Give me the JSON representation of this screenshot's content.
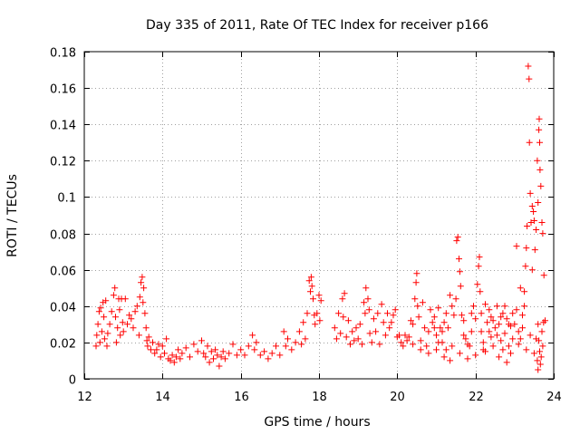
{
  "chart_data": {
    "type": "scatter",
    "title": "Day 335 of 2011, Rate Of TEC Index for receiver p166",
    "xlabel": "GPS time / hours",
    "ylabel": "ROTI / TECUs",
    "xlim": [
      12,
      24
    ],
    "ylim": [
      0,
      0.18
    ],
    "xticks": [
      12,
      14,
      16,
      18,
      20,
      22,
      24
    ],
    "yticks": [
      0,
      0.02,
      0.04,
      0.06,
      0.08,
      0.1,
      0.12,
      0.14,
      0.16,
      0.18
    ],
    "xtick_labels": [
      "12",
      "14",
      "16",
      "18",
      "20",
      "22",
      "24"
    ],
    "ytick_labels": [
      "0",
      "0.02",
      "0.04",
      "0.06",
      "0.08",
      "0.1",
      "0.12",
      "0.14",
      "0.16",
      "0.18"
    ],
    "grid": true,
    "marker": "plus",
    "color": "#ff0000",
    "series": [
      {
        "name": "ROTI",
        "points": [
          [
            12.3,
            0.018
          ],
          [
            12.32,
            0.024
          ],
          [
            12.35,
            0.03
          ],
          [
            12.38,
            0.037
          ],
          [
            12.4,
            0.02
          ],
          [
            12.42,
            0.039
          ],
          [
            12.45,
            0.026
          ],
          [
            12.48,
            0.042
          ],
          [
            12.5,
            0.034
          ],
          [
            12.52,
            0.022
          ],
          [
            12.55,
            0.043
          ],
          [
            12.58,
            0.018
          ],
          [
            12.6,
            0.025
          ],
          [
            12.65,
            0.03
          ],
          [
            12.7,
            0.037
          ],
          [
            12.75,
            0.046
          ],
          [
            12.78,
            0.05
          ],
          [
            12.8,
            0.034
          ],
          [
            12.82,
            0.02
          ],
          [
            12.85,
            0.028
          ],
          [
            12.88,
            0.044
          ],
          [
            12.9,
            0.038
          ],
          [
            12.92,
            0.024
          ],
          [
            12.95,
            0.044
          ],
          [
            12.98,
            0.031
          ],
          [
            13.0,
            0.026
          ],
          [
            13.05,
            0.044
          ],
          [
            13.1,
            0.03
          ],
          [
            13.15,
            0.035
          ],
          [
            13.2,
            0.033
          ],
          [
            13.25,
            0.028
          ],
          [
            13.3,
            0.037
          ],
          [
            13.35,
            0.04
          ],
          [
            13.4,
            0.024
          ],
          [
            13.42,
            0.045
          ],
          [
            13.45,
            0.053
          ],
          [
            13.48,
            0.056
          ],
          [
            13.5,
            0.042
          ],
          [
            13.52,
            0.05
          ],
          [
            13.55,
            0.036
          ],
          [
            13.58,
            0.028
          ],
          [
            13.6,
            0.021
          ],
          [
            13.62,
            0.018
          ],
          [
            13.65,
            0.023
          ],
          [
            13.7,
            0.016
          ],
          [
            13.75,
            0.02
          ],
          [
            13.8,
            0.014
          ],
          [
            13.85,
            0.016
          ],
          [
            13.9,
            0.019
          ],
          [
            13.95,
            0.012
          ],
          [
            14.0,
            0.018
          ],
          [
            14.05,
            0.014
          ],
          [
            14.1,
            0.022
          ],
          [
            14.15,
            0.011
          ],
          [
            14.2,
            0.01
          ],
          [
            14.25,
            0.013
          ],
          [
            14.3,
            0.009
          ],
          [
            14.35,
            0.012
          ],
          [
            14.4,
            0.016
          ],
          [
            14.45,
            0.011
          ],
          [
            14.5,
            0.014
          ],
          [
            14.6,
            0.017
          ],
          [
            14.7,
            0.012
          ],
          [
            14.8,
            0.019
          ],
          [
            14.9,
            0.015
          ],
          [
            15.0,
            0.021
          ],
          [
            15.05,
            0.014
          ],
          [
            15.1,
            0.012
          ],
          [
            15.15,
            0.018
          ],
          [
            15.2,
            0.009
          ],
          [
            15.25,
            0.015
          ],
          [
            15.3,
            0.011
          ],
          [
            15.35,
            0.016
          ],
          [
            15.4,
            0.013
          ],
          [
            15.45,
            0.007
          ],
          [
            15.5,
            0.012
          ],
          [
            15.55,
            0.015
          ],
          [
            15.6,
            0.011
          ],
          [
            15.7,
            0.014
          ],
          [
            15.8,
            0.019
          ],
          [
            15.9,
            0.013
          ],
          [
            16.0,
            0.016
          ],
          [
            16.1,
            0.013
          ],
          [
            16.2,
            0.018
          ],
          [
            16.3,
            0.024
          ],
          [
            16.35,
            0.016
          ],
          [
            16.4,
            0.02
          ],
          [
            16.5,
            0.013
          ],
          [
            16.6,
            0.015
          ],
          [
            16.7,
            0.011
          ],
          [
            16.8,
            0.014
          ],
          [
            16.9,
            0.018
          ],
          [
            17.0,
            0.013
          ],
          [
            17.1,
            0.026
          ],
          [
            17.15,
            0.018
          ],
          [
            17.2,
            0.022
          ],
          [
            17.3,
            0.016
          ],
          [
            17.4,
            0.02
          ],
          [
            17.5,
            0.026
          ],
          [
            17.55,
            0.019
          ],
          [
            17.6,
            0.031
          ],
          [
            17.65,
            0.022
          ],
          [
            17.7,
            0.036
          ],
          [
            17.75,
            0.054
          ],
          [
            17.78,
            0.048
          ],
          [
            17.8,
            0.056
          ],
          [
            17.82,
            0.051
          ],
          [
            17.85,
            0.044
          ],
          [
            17.88,
            0.035
          ],
          [
            17.9,
            0.03
          ],
          [
            17.95,
            0.036
          ],
          [
            18.0,
            0.046
          ],
          [
            18.02,
            0.032
          ],
          [
            18.05,
            0.043
          ],
          [
            18.4,
            0.028
          ],
          [
            18.45,
            0.022
          ],
          [
            18.5,
            0.036
          ],
          [
            18.55,
            0.025
          ],
          [
            18.6,
            0.044
          ],
          [
            18.62,
            0.034
          ],
          [
            18.65,
            0.047
          ],
          [
            18.7,
            0.023
          ],
          [
            18.75,
            0.032
          ],
          [
            18.8,
            0.019
          ],
          [
            18.85,
            0.026
          ],
          [
            18.9,
            0.021
          ],
          [
            18.95,
            0.028
          ],
          [
            19.0,
            0.022
          ],
          [
            19.05,
            0.03
          ],
          [
            19.1,
            0.019
          ],
          [
            19.15,
            0.042
          ],
          [
            19.18,
            0.036
          ],
          [
            19.2,
            0.05
          ],
          [
            19.25,
            0.044
          ],
          [
            19.28,
            0.038
          ],
          [
            19.3,
            0.025
          ],
          [
            19.35,
            0.02
          ],
          [
            19.4,
            0.033
          ],
          [
            19.45,
            0.026
          ],
          [
            19.5,
            0.036
          ],
          [
            19.55,
            0.019
          ],
          [
            19.6,
            0.041
          ],
          [
            19.65,
            0.031
          ],
          [
            19.7,
            0.024
          ],
          [
            19.75,
            0.036
          ],
          [
            19.8,
            0.028
          ],
          [
            19.85,
            0.031
          ],
          [
            19.9,
            0.035
          ],
          [
            19.95,
            0.038
          ],
          [
            20.0,
            0.023
          ],
          [
            20.05,
            0.024
          ],
          [
            20.1,
            0.02
          ],
          [
            20.15,
            0.018
          ],
          [
            20.2,
            0.024
          ],
          [
            20.25,
            0.021
          ],
          [
            20.3,
            0.023
          ],
          [
            20.35,
            0.032
          ],
          [
            20.4,
            0.03
          ],
          [
            20.45,
            0.044
          ],
          [
            20.48,
            0.053
          ],
          [
            20.5,
            0.058
          ],
          [
            20.52,
            0.04
          ],
          [
            20.55,
            0.034
          ],
          [
            20.6,
            0.021
          ],
          [
            20.65,
            0.042
          ],
          [
            20.7,
            0.028
          ],
          [
            20.75,
            0.018
          ],
          [
            20.8,
            0.026
          ],
          [
            20.85,
            0.038
          ],
          [
            20.9,
            0.031
          ],
          [
            20.95,
            0.034
          ],
          [
            21.0,
            0.024
          ],
          [
            21.05,
            0.039
          ],
          [
            21.1,
            0.028
          ],
          [
            21.15,
            0.02
          ],
          [
            21.2,
            0.031
          ],
          [
            21.25,
            0.016
          ],
          [
            21.3,
            0.028
          ],
          [
            21.35,
            0.01
          ],
          [
            21.4,
            0.04
          ],
          [
            21.45,
            0.035
          ],
          [
            21.5,
            0.044
          ],
          [
            21.52,
            0.076
          ],
          [
            21.55,
            0.078
          ],
          [
            21.58,
            0.066
          ],
          [
            21.6,
            0.059
          ],
          [
            21.62,
            0.051
          ],
          [
            21.65,
            0.035
          ],
          [
            21.7,
            0.024
          ],
          [
            21.75,
            0.022
          ],
          [
            21.8,
            0.019
          ],
          [
            21.85,
            0.018
          ],
          [
            21.9,
            0.026
          ],
          [
            21.95,
            0.04
          ],
          [
            22.0,
            0.033
          ],
          [
            22.05,
            0.052
          ],
          [
            22.08,
            0.062
          ],
          [
            22.1,
            0.067
          ],
          [
            22.12,
            0.048
          ],
          [
            22.15,
            0.036
          ],
          [
            22.2,
            0.02
          ],
          [
            22.25,
            0.015
          ],
          [
            22.3,
            0.031
          ],
          [
            22.35,
            0.026
          ],
          [
            22.4,
            0.034
          ],
          [
            22.45,
            0.018
          ],
          [
            22.5,
            0.028
          ],
          [
            22.55,
            0.024
          ],
          [
            22.6,
            0.03
          ],
          [
            22.65,
            0.021
          ],
          [
            22.7,
            0.036
          ],
          [
            22.75,
            0.025
          ],
          [
            22.8,
            0.033
          ],
          [
            22.85,
            0.018
          ],
          [
            22.9,
            0.029
          ],
          [
            22.95,
            0.022
          ],
          [
            23.0,
            0.03
          ],
          [
            23.05,
            0.073
          ],
          [
            23.1,
            0.026
          ],
          [
            23.15,
            0.022
          ],
          [
            23.2,
            0.035
          ],
          [
            23.25,
            0.048
          ],
          [
            23.28,
            0.062
          ],
          [
            23.3,
            0.072
          ],
          [
            23.32,
            0.084
          ],
          [
            23.35,
            0.172
          ],
          [
            23.37,
            0.165
          ],
          [
            23.38,
            0.13
          ],
          [
            23.4,
            0.102
          ],
          [
            23.42,
            0.086
          ],
          [
            23.45,
            0.095
          ],
          [
            23.48,
            0.092
          ],
          [
            23.5,
            0.087
          ],
          [
            23.52,
            0.071
          ],
          [
            23.55,
            0.082
          ],
          [
            23.58,
            0.12
          ],
          [
            23.6,
            0.097
          ],
          [
            23.62,
            0.137
          ],
          [
            23.63,
            0.143
          ],
          [
            23.64,
            0.13
          ],
          [
            23.65,
            0.115
          ],
          [
            23.67,
            0.106
          ],
          [
            23.7,
            0.086
          ],
          [
            23.72,
            0.08
          ],
          [
            23.75,
            0.057
          ],
          [
            23.78,
            0.032
          ],
          [
            23.6,
            0.03
          ],
          [
            23.62,
            0.021
          ],
          [
            23.64,
            0.015
          ],
          [
            23.66,
            0.008
          ],
          [
            23.68,
            0.012
          ],
          [
            23.7,
            0.026
          ],
          [
            23.72,
            0.018
          ],
          [
            23.74,
            0.031
          ],
          [
            23.5,
            0.014
          ],
          [
            23.55,
            0.022
          ],
          [
            23.58,
            0.01
          ],
          [
            23.6,
            0.005
          ],
          [
            23.4,
            0.024
          ],
          [
            23.3,
            0.016
          ],
          [
            23.2,
            0.028
          ],
          [
            23.1,
            0.019
          ],
          [
            22.9,
            0.014
          ],
          [
            22.8,
            0.009
          ],
          [
            22.7,
            0.016
          ],
          [
            22.6,
            0.012
          ],
          [
            22.4,
            0.023
          ],
          [
            22.2,
            0.016
          ],
          [
            22.0,
            0.013
          ],
          [
            21.8,
            0.011
          ],
          [
            21.6,
            0.014
          ],
          [
            21.4,
            0.018
          ],
          [
            21.2,
            0.012
          ],
          [
            21.0,
            0.016
          ],
          [
            20.8,
            0.014
          ],
          [
            20.6,
            0.016
          ],
          [
            20.4,
            0.019
          ],
          [
            22.15,
            0.026
          ],
          [
            22.25,
            0.041
          ],
          [
            22.55,
            0.04
          ],
          [
            22.65,
            0.034
          ],
          [
            22.85,
            0.03
          ],
          [
            23.05,
            0.038
          ],
          [
            23.15,
            0.05
          ],
          [
            23.25,
            0.04
          ],
          [
            21.35,
            0.046
          ],
          [
            21.25,
            0.036
          ],
          [
            21.15,
            0.026
          ],
          [
            21.05,
            0.02
          ],
          [
            20.95,
            0.028
          ],
          [
            21.7,
            0.032
          ],
          [
            21.9,
            0.036
          ],
          [
            22.35,
            0.038
          ],
          [
            22.45,
            0.032
          ],
          [
            22.75,
            0.04
          ],
          [
            22.95,
            0.036
          ],
          [
            23.45,
            0.06
          ]
        ]
      }
    ]
  }
}
